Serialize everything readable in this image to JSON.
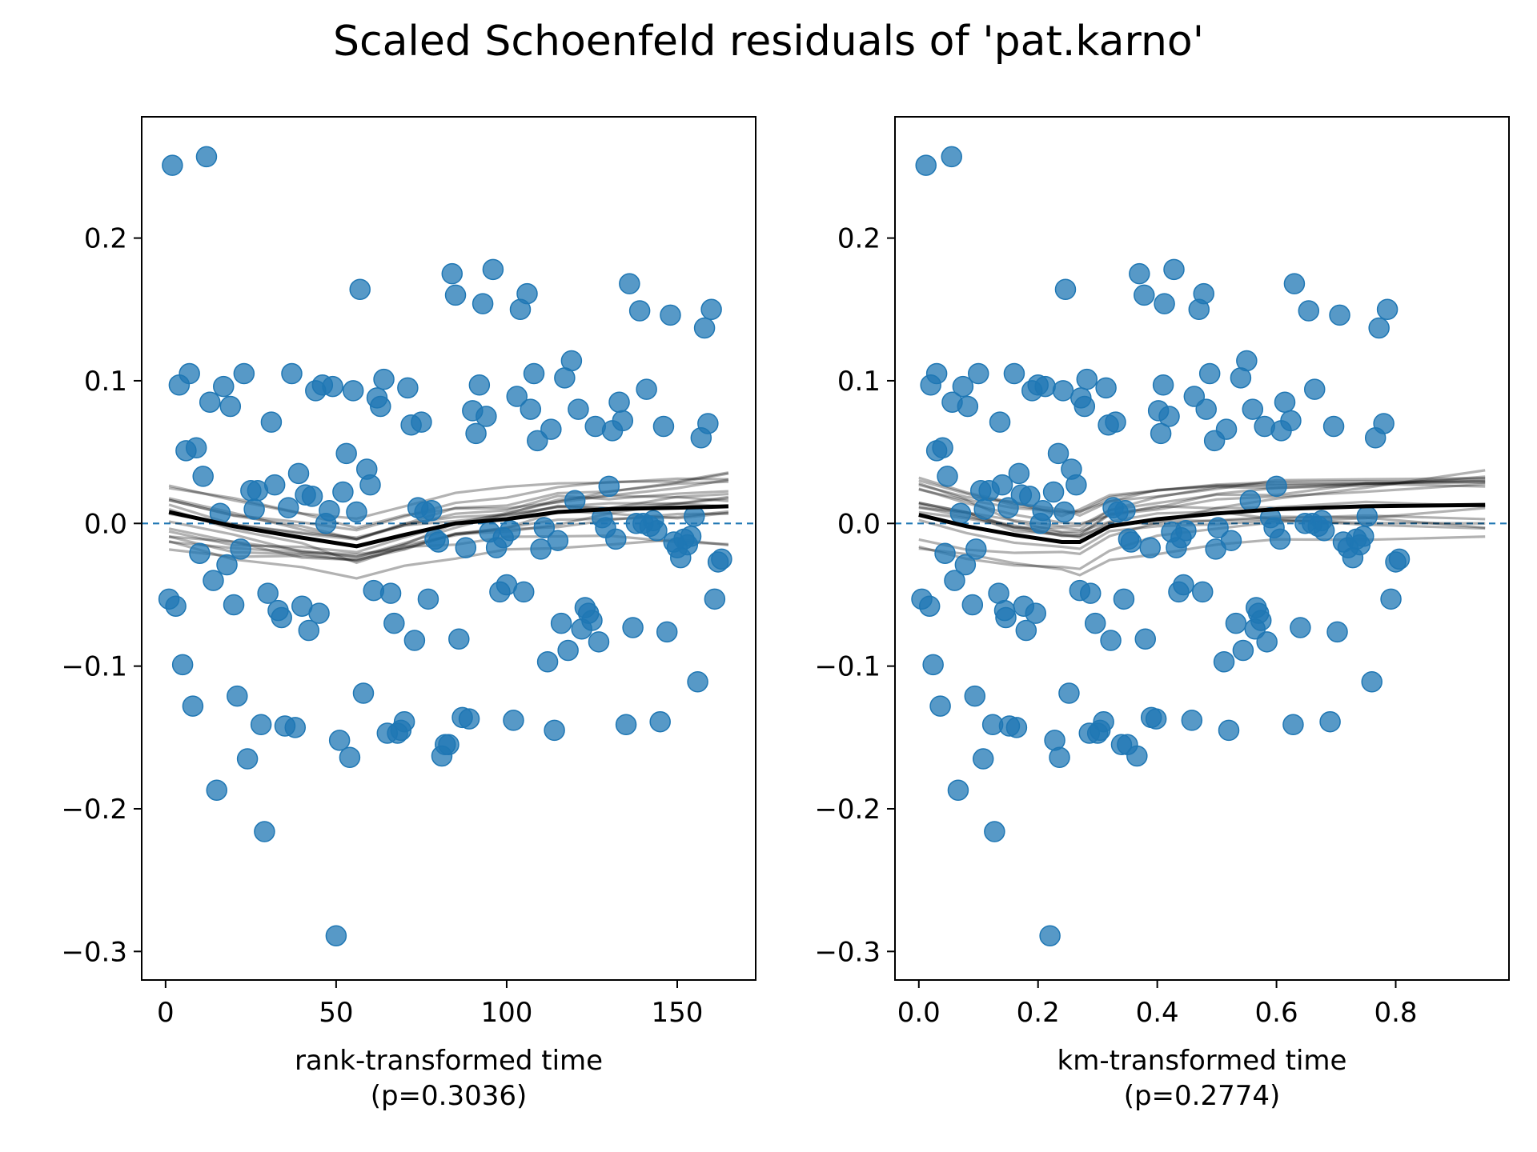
{
  "suptitle": "Scaled Schoenfeld residuals of 'pat.karno'",
  "colors": {
    "points": "#1f77b4",
    "trend": "#000000",
    "bootstrap": "#000000"
  },
  "chart_data": [
    {
      "type": "scatter",
      "xlabel": "rank-transformed time",
      "pvalue": "(p=0.3036)",
      "xlim": [
        -7,
        173
      ],
      "ylim": [
        -0.32,
        0.285
      ],
      "xticks": [
        0,
        50,
        100,
        150
      ],
      "xtick_labels": [
        "0",
        "50",
        "100",
        "150"
      ],
      "yticks": [
        -0.3,
        -0.2,
        -0.1,
        0.0,
        0.1,
        0.2
      ],
      "ytick_labels": [
        "−0.3",
        "−0.2",
        "−0.1",
        "0.0",
        "0.1",
        "0.2"
      ],
      "points": [
        [
          1,
          -0.053
        ],
        [
          2,
          0.251
        ],
        [
          3,
          -0.058
        ],
        [
          4,
          0.097
        ],
        [
          5,
          -0.099
        ],
        [
          6,
          0.051
        ],
        [
          7,
          0.105
        ],
        [
          8,
          -0.128
        ],
        [
          9,
          0.053
        ],
        [
          10,
          -0.021
        ],
        [
          11,
          0.033
        ],
        [
          12,
          0.257
        ],
        [
          13,
          0.085
        ],
        [
          14,
          -0.04
        ],
        [
          15,
          -0.187
        ],
        [
          16,
          0.007
        ],
        [
          17,
          0.096
        ],
        [
          18,
          -0.029
        ],
        [
          19,
          0.082
        ],
        [
          20,
          -0.057
        ],
        [
          21,
          -0.121
        ],
        [
          22,
          -0.018
        ],
        [
          23,
          0.105
        ],
        [
          24,
          -0.165
        ],
        [
          25,
          0.023
        ],
        [
          26,
          0.01
        ],
        [
          27,
          0.023
        ],
        [
          28,
          -0.141
        ],
        [
          29,
          -0.216
        ],
        [
          30,
          -0.049
        ],
        [
          31,
          0.071
        ],
        [
          32,
          0.027
        ],
        [
          33,
          -0.061
        ],
        [
          34,
          -0.066
        ],
        [
          35,
          -0.142
        ],
        [
          36,
          0.011
        ],
        [
          37,
          0.105
        ],
        [
          38,
          -0.143
        ],
        [
          39,
          0.035
        ],
        [
          40,
          -0.058
        ],
        [
          41,
          0.02
        ],
        [
          42,
          -0.075
        ],
        [
          43,
          0.019
        ],
        [
          44,
          0.093
        ],
        [
          45,
          -0.063
        ],
        [
          46,
          0.097
        ],
        [
          47,
          0.0
        ],
        [
          48,
          0.009
        ],
        [
          49,
          0.096
        ],
        [
          50,
          -0.289
        ],
        [
          51,
          -0.152
        ],
        [
          52,
          0.022
        ],
        [
          53,
          0.049
        ],
        [
          54,
          -0.164
        ],
        [
          55,
          0.093
        ],
        [
          56,
          0.008
        ],
        [
          57,
          0.164
        ],
        [
          58,
          -0.119
        ],
        [
          59,
          0.038
        ],
        [
          60,
          0.027
        ],
        [
          61,
          -0.047
        ],
        [
          62,
          0.088
        ],
        [
          63,
          0.082
        ],
        [
          64,
          0.101
        ],
        [
          65,
          -0.147
        ],
        [
          66,
          -0.049
        ],
        [
          67,
          -0.07
        ],
        [
          68,
          -0.147
        ],
        [
          69,
          -0.145
        ],
        [
          70,
          -0.139
        ],
        [
          71,
          0.095
        ],
        [
          72,
          0.069
        ],
        [
          73,
          -0.082
        ],
        [
          74,
          0.011
        ],
        [
          75,
          0.071
        ],
        [
          76,
          0.008
        ],
        [
          77,
          -0.053
        ],
        [
          78,
          0.009
        ],
        [
          79,
          -0.011
        ],
        [
          80,
          -0.013
        ],
        [
          81,
          -0.163
        ],
        [
          82,
          -0.155
        ],
        [
          83,
          -0.155
        ],
        [
          84,
          0.175
        ],
        [
          85,
          0.16
        ],
        [
          86,
          -0.081
        ],
        [
          87,
          -0.136
        ],
        [
          88,
          -0.017
        ],
        [
          89,
          -0.137
        ],
        [
          90,
          0.079
        ],
        [
          91,
          0.063
        ],
        [
          92,
          0.097
        ],
        [
          93,
          0.154
        ],
        [
          94,
          0.075
        ],
        [
          95,
          -0.006
        ],
        [
          96,
          0.178
        ],
        [
          97,
          -0.017
        ],
        [
          98,
          -0.048
        ],
        [
          99,
          -0.01
        ],
        [
          100,
          -0.043
        ],
        [
          101,
          -0.005
        ],
        [
          102,
          -0.138
        ],
        [
          103,
          0.089
        ],
        [
          104,
          0.15
        ],
        [
          105,
          -0.048
        ],
        [
          106,
          0.161
        ],
        [
          107,
          0.08
        ],
        [
          108,
          0.105
        ],
        [
          109,
          0.058
        ],
        [
          110,
          -0.018
        ],
        [
          111,
          -0.003
        ],
        [
          112,
          -0.097
        ],
        [
          113,
          0.066
        ],
        [
          114,
          -0.145
        ],
        [
          115,
          -0.012
        ],
        [
          116,
          -0.07
        ],
        [
          117,
          0.102
        ],
        [
          118,
          -0.089
        ],
        [
          119,
          0.114
        ],
        [
          120,
          0.016
        ],
        [
          121,
          0.08
        ],
        [
          122,
          -0.074
        ],
        [
          123,
          -0.059
        ],
        [
          124,
          -0.063
        ],
        [
          125,
          -0.068
        ],
        [
          126,
          0.068
        ],
        [
          127,
          -0.083
        ],
        [
          128,
          0.004
        ],
        [
          129,
          -0.003
        ],
        [
          130,
          0.026
        ],
        [
          131,
          0.065
        ],
        [
          132,
          -0.011
        ],
        [
          133,
          0.085
        ],
        [
          134,
          0.072
        ],
        [
          135,
          -0.141
        ],
        [
          136,
          0.168
        ],
        [
          137,
          -0.073
        ],
        [
          138,
          0.0
        ],
        [
          139,
          0.149
        ],
        [
          140,
          0.0
        ],
        [
          141,
          0.094
        ],
        [
          142,
          -0.002
        ],
        [
          143,
          0.002
        ],
        [
          144,
          -0.005
        ],
        [
          145,
          -0.139
        ],
        [
          146,
          0.068
        ],
        [
          147,
          -0.076
        ],
        [
          148,
          0.146
        ],
        [
          149,
          -0.013
        ],
        [
          150,
          -0.017
        ],
        [
          151,
          -0.024
        ],
        [
          152,
          -0.011
        ],
        [
          153,
          -0.015
        ],
        [
          154,
          -0.009
        ],
        [
          155,
          0.005
        ],
        [
          156,
          -0.111
        ],
        [
          157,
          0.06
        ],
        [
          158,
          0.137
        ],
        [
          159,
          0.07
        ],
        [
          160,
          0.15
        ],
        [
          161,
          -0.053
        ],
        [
          162,
          -0.027
        ],
        [
          163,
          -0.025
        ]
      ],
      "trend": [
        [
          1,
          0.008
        ],
        [
          20,
          -0.002
        ],
        [
          40,
          -0.01
        ],
        [
          56,
          -0.016
        ],
        [
          70,
          -0.008
        ],
        [
          85,
          0.0
        ],
        [
          100,
          0.003
        ],
        [
          115,
          0.008
        ],
        [
          130,
          0.01
        ],
        [
          150,
          0.011
        ],
        [
          165,
          0.012
        ]
      ]
    },
    {
      "type": "scatter",
      "xlabel": "km-transformed time",
      "pvalue": "(p=0.2774)",
      "xlim": [
        -0.04,
        0.99
      ],
      "ylim": [
        -0.32,
        0.285
      ],
      "xticks": [
        0.0,
        0.2,
        0.4,
        0.6,
        0.8
      ],
      "xtick_labels": [
        "0.0",
        "0.2",
        "0.4",
        "0.6",
        "0.8"
      ],
      "yticks": [
        -0.3,
        -0.2,
        -0.1,
        0.0,
        0.1,
        0.2
      ],
      "ytick_labels": [
        "−0.3",
        "−0.2",
        "−0.1",
        "0.0",
        "0.1",
        "0.2"
      ],
      "points": [
        [
          0.005,
          -0.053
        ],
        [
          0.012,
          0.251
        ],
        [
          0.018,
          -0.058
        ],
        [
          0.02,
          0.097
        ],
        [
          0.024,
          -0.099
        ],
        [
          0.03,
          0.051
        ],
        [
          0.03,
          0.105
        ],
        [
          0.036,
          -0.128
        ],
        [
          0.04,
          0.053
        ],
        [
          0.044,
          -0.021
        ],
        [
          0.048,
          0.033
        ],
        [
          0.055,
          0.257
        ],
        [
          0.056,
          0.085
        ],
        [
          0.06,
          -0.04
        ],
        [
          0.066,
          -0.187
        ],
        [
          0.07,
          0.007
        ],
        [
          0.074,
          0.096
        ],
        [
          0.078,
          -0.029
        ],
        [
          0.082,
          0.082
        ],
        [
          0.09,
          -0.057
        ],
        [
          0.094,
          -0.121
        ],
        [
          0.096,
          -0.018
        ],
        [
          0.1,
          0.105
        ],
        [
          0.108,
          -0.165
        ],
        [
          0.104,
          0.023
        ],
        [
          0.11,
          0.01
        ],
        [
          0.118,
          0.023
        ],
        [
          0.124,
          -0.141
        ],
        [
          0.127,
          -0.216
        ],
        [
          0.134,
          -0.049
        ],
        [
          0.136,
          0.071
        ],
        [
          0.14,
          0.027
        ],
        [
          0.144,
          -0.061
        ],
        [
          0.146,
          -0.066
        ],
        [
          0.152,
          -0.142
        ],
        [
          0.15,
          0.011
        ],
        [
          0.16,
          0.105
        ],
        [
          0.164,
          -0.143
        ],
        [
          0.168,
          0.035
        ],
        [
          0.176,
          -0.058
        ],
        [
          0.172,
          0.02
        ],
        [
          0.18,
          -0.075
        ],
        [
          0.186,
          0.019
        ],
        [
          0.19,
          0.093
        ],
        [
          0.196,
          -0.063
        ],
        [
          0.2,
          0.097
        ],
        [
          0.204,
          0.0
        ],
        [
          0.208,
          0.009
        ],
        [
          0.212,
          0.096
        ],
        [
          0.22,
          -0.289
        ],
        [
          0.228,
          -0.152
        ],
        [
          0.226,
          0.022
        ],
        [
          0.234,
          0.049
        ],
        [
          0.236,
          -0.164
        ],
        [
          0.242,
          0.093
        ],
        [
          0.244,
          0.008
        ],
        [
          0.246,
          0.164
        ],
        [
          0.252,
          -0.119
        ],
        [
          0.256,
          0.038
        ],
        [
          0.264,
          0.027
        ],
        [
          0.27,
          -0.047
        ],
        [
          0.272,
          0.088
        ],
        [
          0.278,
          0.082
        ],
        [
          0.282,
          0.101
        ],
        [
          0.286,
          -0.147
        ],
        [
          0.288,
          -0.049
        ],
        [
          0.296,
          -0.07
        ],
        [
          0.3,
          -0.147
        ],
        [
          0.304,
          -0.145
        ],
        [
          0.31,
          -0.139
        ],
        [
          0.314,
          0.095
        ],
        [
          0.318,
          0.069
        ],
        [
          0.322,
          -0.082
        ],
        [
          0.326,
          0.011
        ],
        [
          0.33,
          0.071
        ],
        [
          0.334,
          0.008
        ],
        [
          0.344,
          -0.053
        ],
        [
          0.346,
          0.009
        ],
        [
          0.352,
          -0.011
        ],
        [
          0.356,
          -0.013
        ],
        [
          0.366,
          -0.163
        ],
        [
          0.35,
          -0.155
        ],
        [
          0.34,
          -0.155
        ],
        [
          0.37,
          0.175
        ],
        [
          0.378,
          0.16
        ],
        [
          0.38,
          -0.081
        ],
        [
          0.39,
          -0.136
        ],
        [
          0.388,
          -0.017
        ],
        [
          0.398,
          -0.137
        ],
        [
          0.402,
          0.079
        ],
        [
          0.406,
          0.063
        ],
        [
          0.41,
          0.097
        ],
        [
          0.412,
          0.154
        ],
        [
          0.42,
          0.075
        ],
        [
          0.424,
          -0.006
        ],
        [
          0.428,
          0.178
        ],
        [
          0.432,
          -0.017
        ],
        [
          0.436,
          -0.048
        ],
        [
          0.44,
          -0.01
        ],
        [
          0.444,
          -0.043
        ],
        [
          0.448,
          -0.005
        ],
        [
          0.458,
          -0.138
        ],
        [
          0.462,
          0.089
        ],
        [
          0.47,
          0.15
        ],
        [
          0.476,
          -0.048
        ],
        [
          0.478,
          0.161
        ],
        [
          0.482,
          0.08
        ],
        [
          0.488,
          0.105
        ],
        [
          0.496,
          0.058
        ],
        [
          0.498,
          -0.018
        ],
        [
          0.502,
          -0.003
        ],
        [
          0.512,
          -0.097
        ],
        [
          0.516,
          0.066
        ],
        [
          0.52,
          -0.145
        ],
        [
          0.524,
          -0.012
        ],
        [
          0.532,
          -0.07
        ],
        [
          0.54,
          0.102
        ],
        [
          0.544,
          -0.089
        ],
        [
          0.55,
          0.114
        ],
        [
          0.556,
          0.016
        ],
        [
          0.56,
          0.08
        ],
        [
          0.564,
          -0.074
        ],
        [
          0.566,
          -0.059
        ],
        [
          0.57,
          -0.063
        ],
        [
          0.574,
          -0.068
        ],
        [
          0.58,
          0.068
        ],
        [
          0.584,
          -0.083
        ],
        [
          0.59,
          0.004
        ],
        [
          0.596,
          -0.003
        ],
        [
          0.6,
          0.026
        ],
        [
          0.608,
          0.065
        ],
        [
          0.606,
          -0.011
        ],
        [
          0.614,
          0.085
        ],
        [
          0.624,
          0.072
        ],
        [
          0.628,
          -0.141
        ],
        [
          0.63,
          0.168
        ],
        [
          0.64,
          -0.073
        ],
        [
          0.648,
          0.0
        ],
        [
          0.654,
          0.149
        ],
        [
          0.66,
          0.0
        ],
        [
          0.664,
          0.094
        ],
        [
          0.67,
          -0.002
        ],
        [
          0.676,
          0.002
        ],
        [
          0.68,
          -0.005
        ],
        [
          0.69,
          -0.139
        ],
        [
          0.696,
          0.068
        ],
        [
          0.702,
          -0.076
        ],
        [
          0.706,
          0.146
        ],
        [
          0.712,
          -0.013
        ],
        [
          0.72,
          -0.017
        ],
        [
          0.728,
          -0.024
        ],
        [
          0.734,
          -0.011
        ],
        [
          0.74,
          -0.015
        ],
        [
          0.746,
          -0.009
        ],
        [
          0.752,
          0.005
        ],
        [
          0.76,
          -0.111
        ],
        [
          0.766,
          0.06
        ],
        [
          0.772,
          0.137
        ],
        [
          0.78,
          0.07
        ],
        [
          0.786,
          0.15
        ],
        [
          0.792,
          -0.053
        ],
        [
          0.8,
          -0.027
        ],
        [
          0.806,
          -0.025
        ]
      ],
      "trend": [
        [
          0.0,
          0.006
        ],
        [
          0.08,
          -0.002
        ],
        [
          0.16,
          -0.008
        ],
        [
          0.24,
          -0.013
        ],
        [
          0.27,
          -0.013
        ],
        [
          0.32,
          -0.002
        ],
        [
          0.4,
          0.003
        ],
        [
          0.5,
          0.007
        ],
        [
          0.6,
          0.01
        ],
        [
          0.75,
          0.012
        ],
        [
          0.95,
          0.013
        ]
      ]
    }
  ]
}
